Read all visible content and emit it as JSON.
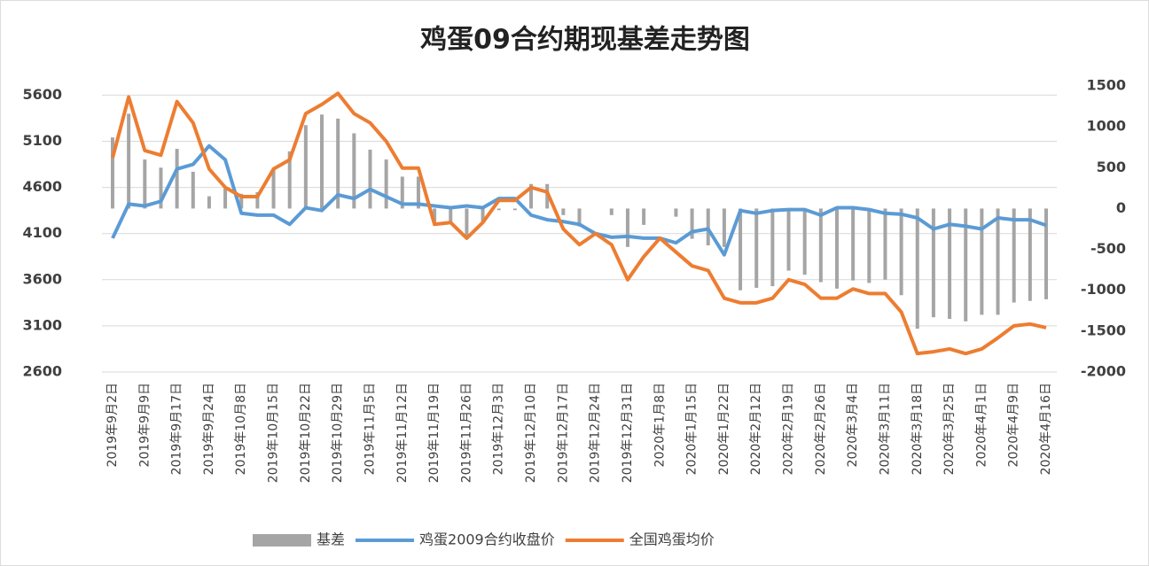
{
  "chart_data": {
    "type": "bar_line_dual",
    "title": "鸡蛋09合约期现基差走势图",
    "categories": [
      "2019年9月2日",
      null,
      "2019年9月9日",
      null,
      "2019年9月17日",
      null,
      "2019年9月24日",
      null,
      "2019年10月8日",
      null,
      "2019年10月15日",
      null,
      "2019年10月22日",
      null,
      "2019年10月29日",
      null,
      "2019年11月5日",
      null,
      "2019年11月12日",
      null,
      "2019年11月19日",
      null,
      "2019年11月26日",
      null,
      "2019年12月3日",
      null,
      "2019年12月10日",
      null,
      "2019年12月17日",
      null,
      "2019年12月24日",
      null,
      "2019年12月31日",
      null,
      "2020年1月8日",
      null,
      "2020年1月15日",
      null,
      "2020年1月22日",
      null,
      "2020年2月12日",
      null,
      "2020年2月19日",
      null,
      "2020年2月26日",
      null,
      "2020年3月4日",
      null,
      "2020年3月11日",
      null,
      "2020年3月18日",
      null,
      "2020年3月25日",
      null,
      "2020年4月1日",
      null,
      "2020年4月9日",
      null,
      "2020年4月16日"
    ],
    "series": [
      {
        "name": "基差",
        "kind": "bar",
        "axis": "y2",
        "color": "#a5a5a5",
        "values": [
          870,
          1160,
          600,
          500,
          730,
          450,
          150,
          250,
          180,
          200,
          500,
          700,
          1020,
          1150,
          1100,
          920,
          720,
          600,
          390,
          390,
          -200,
          -160,
          -350,
          -160,
          -20,
          -20,
          300,
          300,
          -80,
          -220,
          0,
          -80,
          -470,
          -200,
          0,
          -100,
          -370,
          -450,
          -470,
          -1000,
          -970,
          -950,
          -760,
          -810,
          -900,
          -980,
          -880,
          -910,
          -870,
          -1060,
          -1470,
          -1330,
          -1350,
          -1380,
          -1300,
          -1300,
          -1150,
          -1130,
          -1110
        ]
      },
      {
        "name": "鸡蛋2009合约收盘价",
        "kind": "line",
        "color": "#5b9bd5",
        "values": [
          4050,
          4420,
          4400,
          4450,
          4800,
          4850,
          5050,
          4900,
          4320,
          4300,
          4300,
          4200,
          4380,
          4350,
          4520,
          4480,
          4580,
          4500,
          4420,
          4420,
          4400,
          4380,
          4400,
          4380,
          4480,
          4480,
          4300,
          4250,
          4230,
          4200,
          4100,
          4060,
          4070,
          4050,
          4050,
          4000,
          4120,
          4150,
          3870,
          4350,
          4320,
          4350,
          4360,
          4360,
          4300,
          4380,
          4380,
          4360,
          4320,
          4310,
          4270,
          4150,
          4200,
          4180,
          4150,
          4270,
          4250,
          4250,
          4190
        ]
      },
      {
        "name": "全国鸡蛋均价",
        "kind": "line",
        "color": "#ed7d31",
        "values": [
          4920,
          5580,
          5000,
          4950,
          5530,
          5300,
          4800,
          4600,
          4500,
          4500,
          4800,
          4900,
          5400,
          5500,
          5620,
          5400,
          5300,
          5100,
          4810,
          4810,
          4200,
          4220,
          4050,
          4220,
          4460,
          4460,
          4600,
          4550,
          4150,
          3980,
          4100,
          3980,
          3600,
          3850,
          4050,
          3900,
          3750,
          3700,
          3400,
          3350,
          3350,
          3400,
          3600,
          3550,
          3400,
          3400,
          3500,
          3450,
          3450,
          3250,
          2800,
          2820,
          2850,
          2800,
          2850,
          2970,
          3100,
          3120,
          3080
        ]
      }
    ],
    "ylim": [
      2600,
      5700
    ],
    "yticks": [
      2600,
      3100,
      3600,
      4100,
      4600,
      5100,
      5600
    ],
    "y2lim": [
      -2000,
      1500
    ],
    "y2ticks": [
      -2000,
      -1500,
      -1000,
      -500,
      0,
      500,
      1000,
      1500
    ],
    "grid": true,
    "legend": "bottom"
  }
}
